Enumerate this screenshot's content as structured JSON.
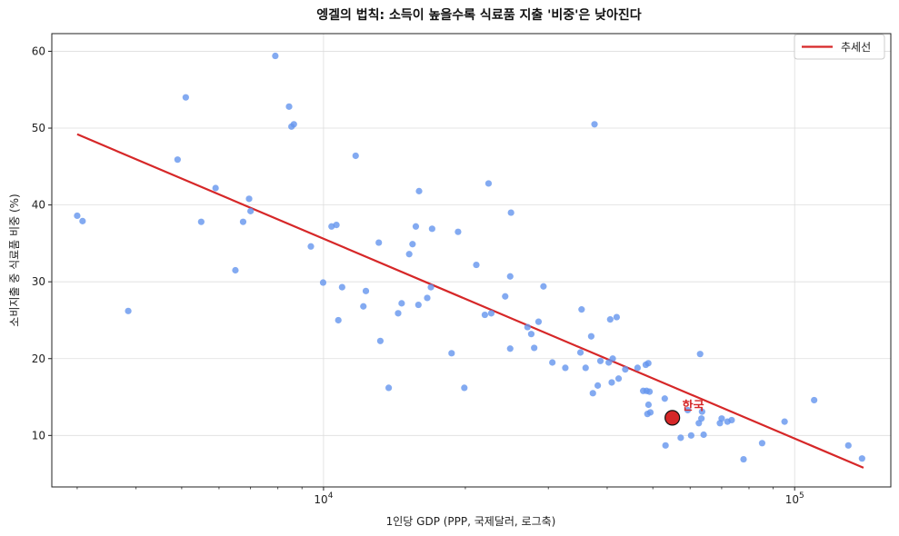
{
  "chart_data": {
    "type": "scatter",
    "title": "엥겔의 법칙: 소득이 높을수록 식료품 지출 '비중'은 낮아진다",
    "xlabel": "1인당 GDP (PPP, 국제달러, 로그축)",
    "ylabel": "소비지출 중 식료품 비중 (%)",
    "x_scale": "log",
    "xlim": [
      2650,
      160000
    ],
    "ylim": [
      3.3,
      62.3
    ],
    "x_ticks": [
      {
        "value": 10000,
        "base": "10",
        "exp": "4"
      },
      {
        "value": 100000,
        "base": "10",
        "exp": "5"
      }
    ],
    "y_ticks": [
      10,
      20,
      30,
      40,
      50,
      60
    ],
    "grid": true,
    "legend": {
      "placement": "top-right",
      "entries": [
        "추세선"
      ]
    },
    "colors": {
      "points": "#6495ED",
      "trend": "#d62728",
      "highlight": "#d62728"
    },
    "trend_line": {
      "x": [
        3000,
        140000
      ],
      "y": [
        49.2,
        5.8
      ]
    },
    "highlight": {
      "x": 55000,
      "y": 12.3,
      "label": "한국"
    },
    "points": [
      [
        3000,
        38.6
      ],
      [
        3080,
        37.9
      ],
      [
        3850,
        26.2
      ],
      [
        4900,
        45.9
      ],
      [
        5100,
        54.0
      ],
      [
        5500,
        37.8
      ],
      [
        5900,
        42.2
      ],
      [
        6500,
        31.5
      ],
      [
        6750,
        37.8
      ],
      [
        6950,
        40.8
      ],
      [
        7000,
        39.2
      ],
      [
        7900,
        59.4
      ],
      [
        8450,
        52.8
      ],
      [
        8550,
        50.2
      ],
      [
        8650,
        50.5
      ],
      [
        9400,
        34.6
      ],
      [
        9980,
        29.9
      ],
      [
        10400,
        37.2
      ],
      [
        10650,
        37.4
      ],
      [
        10750,
        25.0
      ],
      [
        10950,
        29.3
      ],
      [
        11700,
        46.4
      ],
      [
        12150,
        26.8
      ],
      [
        12300,
        28.8
      ],
      [
        13100,
        35.1
      ],
      [
        13200,
        22.3
      ],
      [
        13750,
        16.2
      ],
      [
        14400,
        25.9
      ],
      [
        14650,
        27.2
      ],
      [
        15200,
        33.6
      ],
      [
        15450,
        34.9
      ],
      [
        15700,
        37.2
      ],
      [
        15950,
        41.8
      ],
      [
        15900,
        27.0
      ],
      [
        16600,
        27.9
      ],
      [
        16900,
        29.3
      ],
      [
        17000,
        36.9
      ],
      [
        18700,
        20.7
      ],
      [
        19300,
        36.5
      ],
      [
        19900,
        16.2
      ],
      [
        21100,
        32.2
      ],
      [
        22000,
        25.7
      ],
      [
        22400,
        42.8
      ],
      [
        22700,
        25.9
      ],
      [
        24300,
        28.1
      ],
      [
        24900,
        30.7
      ],
      [
        24900,
        21.3
      ],
      [
        25000,
        39.0
      ],
      [
        27100,
        24.1
      ],
      [
        27600,
        23.2
      ],
      [
        28000,
        21.4
      ],
      [
        28600,
        24.8
      ],
      [
        29300,
        29.4
      ],
      [
        30600,
        19.5
      ],
      [
        32600,
        18.8
      ],
      [
        35100,
        20.8
      ],
      [
        35300,
        26.4
      ],
      [
        36000,
        18.8
      ],
      [
        37000,
        22.9
      ],
      [
        37600,
        50.5
      ],
      [
        37300,
        15.5
      ],
      [
        38200,
        16.5
      ],
      [
        38700,
        19.7
      ],
      [
        40300,
        19.5
      ],
      [
        40600,
        25.1
      ],
      [
        40900,
        16.9
      ],
      [
        41100,
        20.0
      ],
      [
        41900,
        25.4
      ],
      [
        42300,
        17.4
      ],
      [
        43700,
        18.6
      ],
      [
        46400,
        18.8
      ],
      [
        47700,
        15.8
      ],
      [
        48300,
        19.2
      ],
      [
        48500,
        15.8
      ],
      [
        48700,
        12.8
      ],
      [
        48900,
        19.4
      ],
      [
        48950,
        14.0
      ],
      [
        49200,
        15.7
      ],
      [
        49400,
        13.0
      ],
      [
        53000,
        14.8
      ],
      [
        53200,
        8.7
      ],
      [
        57300,
        9.7
      ],
      [
        59300,
        13.3
      ],
      [
        60300,
        10.0
      ],
      [
        63000,
        20.6
      ],
      [
        62600,
        11.6
      ],
      [
        63400,
        12.2
      ],
      [
        63600,
        13.1
      ],
      [
        64100,
        10.1
      ],
      [
        69400,
        11.6
      ],
      [
        70000,
        12.2
      ],
      [
        72000,
        11.8
      ],
      [
        73500,
        12.0
      ],
      [
        77900,
        6.9
      ],
      [
        85300,
        9.0
      ],
      [
        95200,
        11.8
      ],
      [
        110000,
        14.6
      ],
      [
        130000,
        8.7
      ],
      [
        139000,
        7.0
      ]
    ]
  }
}
